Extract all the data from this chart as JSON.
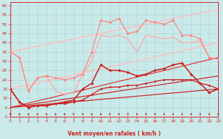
{
  "xlabel": "Vent moyen/en rafales ( km/h )",
  "xlim": [
    0,
    23
  ],
  "ylim": [
    0,
    62
  ],
  "yticks": [
    0,
    5,
    10,
    15,
    20,
    25,
    30,
    35,
    40,
    45,
    50,
    55,
    60
  ],
  "xticks": [
    0,
    1,
    2,
    3,
    4,
    5,
    6,
    7,
    8,
    9,
    10,
    11,
    12,
    13,
    14,
    15,
    16,
    17,
    18,
    19,
    20,
    21,
    22,
    23
  ],
  "bg_color": "#caeaea",
  "grid_color": "#b0d4d4",
  "lines": [
    {
      "x": [
        0,
        23
      ],
      "y": [
        5,
        15
      ],
      "color": "#cc2222",
      "lw": 0.9,
      "marker": null,
      "zorder": 2
    },
    {
      "x": [
        0,
        23
      ],
      "y": [
        5,
        22
      ],
      "color": "#cc2222",
      "lw": 0.9,
      "marker": null,
      "zorder": 2
    },
    {
      "x": [
        0,
        23
      ],
      "y": [
        5,
        32
      ],
      "color": "#dd3333",
      "lw": 0.9,
      "marker": null,
      "zorder": 2
    },
    {
      "x": [
        0,
        23
      ],
      "y": [
        35,
        58
      ],
      "color": "#ffbbbb",
      "lw": 1.0,
      "marker": null,
      "zorder": 2
    },
    {
      "x": [
        0,
        23
      ],
      "y": [
        15,
        40
      ],
      "color": "#ffbbbb",
      "lw": 1.0,
      "marker": null,
      "zorder": 2
    },
    {
      "x": [
        0,
        1,
        2,
        3,
        4,
        5,
        6,
        7,
        8,
        9,
        10,
        11,
        12,
        13,
        14,
        15,
        16,
        17,
        18,
        19,
        20,
        21,
        22,
        23
      ],
      "y": [
        35,
        32,
        14,
        21,
        22,
        21,
        20,
        21,
        23,
        35,
        52,
        51,
        53,
        45,
        46,
        52,
        51,
        50,
        52,
        44,
        44,
        42,
        32,
        31
      ],
      "color": "#ff8888",
      "lw": 1.0,
      "marker": "D",
      "ms": 2.0,
      "zorder": 4
    },
    {
      "x": [
        0,
        1,
        2,
        3,
        4,
        5,
        6,
        7,
        8,
        9,
        10,
        11,
        12,
        13,
        14,
        15,
        16,
        17,
        18,
        19,
        20,
        21,
        22,
        23
      ],
      "y": [
        15,
        8,
        5,
        6,
        6,
        7,
        8,
        9,
        15,
        18,
        28,
        25,
        25,
        24,
        22,
        23,
        25,
        26,
        28,
        29,
        23,
        18,
        13,
        15
      ],
      "color": "#cc2222",
      "lw": 1.2,
      "marker": "D",
      "ms": 2.0,
      "zorder": 4
    },
    {
      "x": [
        0,
        1,
        2,
        3,
        4,
        5,
        6,
        7,
        8,
        9,
        10,
        11,
        12,
        13,
        14,
        15,
        16,
        17,
        18,
        19,
        20,
        21,
        22,
        23
      ],
      "y": [
        15,
        8,
        5,
        6,
        6,
        7,
        7,
        8,
        9,
        12,
        15,
        16,
        16,
        17,
        17,
        18,
        19,
        20,
        20,
        20,
        20,
        18,
        17,
        15
      ],
      "color": "#cc2222",
      "lw": 1.0,
      "marker": "D",
      "ms": 1.5,
      "zorder": 4
    },
    {
      "x": [
        0,
        1,
        2,
        3,
        4,
        5,
        6,
        7,
        8,
        9,
        10,
        11,
        12,
        13,
        14,
        15,
        16,
        17,
        18,
        19,
        20,
        21,
        22,
        23
      ],
      "y": [
        35,
        32,
        14,
        21,
        22,
        14,
        12,
        13,
        23,
        30,
        44,
        43,
        44,
        42,
        35,
        44,
        43,
        42,
        43,
        40,
        40,
        41,
        32,
        31
      ],
      "color": "#ffaaaa",
      "lw": 1.0,
      "marker": null,
      "zorder": 3
    }
  ],
  "arrow_color": "#cc2222"
}
